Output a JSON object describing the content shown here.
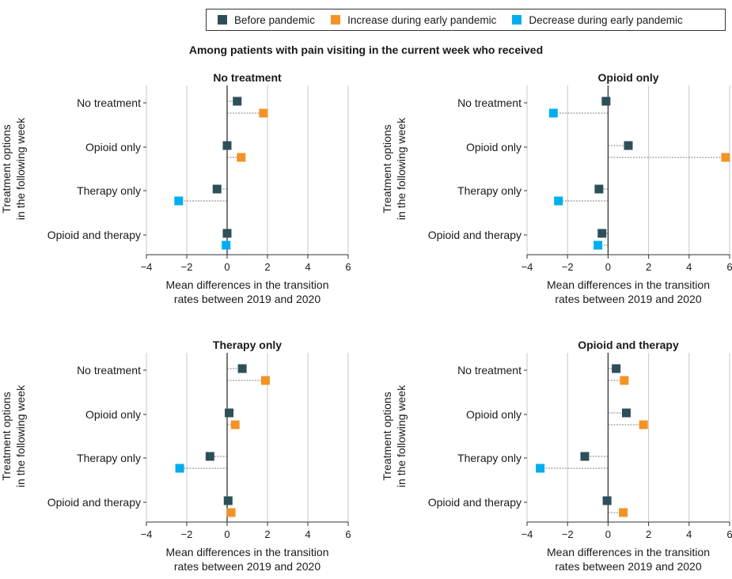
{
  "legend": {
    "items": [
      {
        "label": "Before pandemic",
        "color": "#2d4f5a"
      },
      {
        "label": "Increase during early pandemic",
        "color": "#f39325"
      },
      {
        "label": "Decrease during early pandemic",
        "color": "#00aeef"
      }
    ]
  },
  "main_title": "Among patients with pain visiting in the current week who received",
  "chart_data": [
    {
      "type": "scatter",
      "title": "No treatment",
      "ylabel": "Treatment options in the following week",
      "xlabel": "Mean differences in the transition rates between 2019 and 2020",
      "xlim": [
        -4,
        6
      ],
      "xticks": [
        "−4",
        "−2",
        "0",
        "2",
        "4",
        "6"
      ],
      "categories": [
        "No treatment",
        "Opioid only",
        "Therapy only",
        "Opioid and therapy"
      ],
      "before": [
        0.5,
        0.0,
        -0.5,
        0.0
      ],
      "change": [
        {
          "value": 1.8,
          "direction": "increase"
        },
        {
          "value": 0.7,
          "direction": "increase"
        },
        {
          "value": -2.4,
          "direction": "decrease"
        },
        {
          "value": -0.05,
          "direction": "decrease"
        }
      ]
    },
    {
      "type": "scatter",
      "title": "Opioid only",
      "ylabel": "Treatment options in the following week",
      "xlabel": "Mean differences in the transition rates between 2019 and 2020",
      "xlim": [
        -4,
        6
      ],
      "xticks": [
        "−4",
        "−2",
        "0",
        "2",
        "4",
        "6"
      ],
      "categories": [
        "No treatment",
        "Opioid only",
        "Therapy only",
        "Opioid and therapy"
      ],
      "before": [
        -0.1,
        1.0,
        -0.45,
        -0.3
      ],
      "change": [
        {
          "value": -2.7,
          "direction": "decrease"
        },
        {
          "value": 5.8,
          "direction": "increase"
        },
        {
          "value": -2.45,
          "direction": "decrease"
        },
        {
          "value": -0.5,
          "direction": "decrease"
        }
      ]
    },
    {
      "type": "scatter",
      "title": "Therapy only",
      "ylabel": "Treatment options in the following week",
      "xlabel": "Mean differences in the transition rates between 2019 and 2020",
      "xlim": [
        -4,
        6
      ],
      "xticks": [
        "−4",
        "−2",
        "0",
        "2",
        "4",
        "6"
      ],
      "categories": [
        "No treatment",
        "Opioid only",
        "Therapy only",
        "Opioid and therapy"
      ],
      "before": [
        0.75,
        0.1,
        -0.85,
        0.05
      ],
      "change": [
        {
          "value": 1.9,
          "direction": "increase"
        },
        {
          "value": 0.4,
          "direction": "increase"
        },
        {
          "value": -2.35,
          "direction": "decrease"
        },
        {
          "value": 0.2,
          "direction": "increase"
        }
      ]
    },
    {
      "type": "scatter",
      "title": "Opioid and therapy",
      "ylabel": "Treatment options in the following week",
      "xlabel": "Mean differences in the transition rates between 2019 and 2020",
      "xlim": [
        -4,
        6
      ],
      "xticks": [
        "−4",
        "−2",
        "0",
        "2",
        "4",
        "6"
      ],
      "categories": [
        "No treatment",
        "Opioid only",
        "Therapy only",
        "Opioid and therapy"
      ],
      "before": [
        0.4,
        0.9,
        -1.15,
        -0.05
      ],
      "change": [
        {
          "value": 0.8,
          "direction": "increase"
        },
        {
          "value": 1.75,
          "direction": "increase"
        },
        {
          "value": -3.35,
          "direction": "decrease"
        },
        {
          "value": 0.75,
          "direction": "increase"
        }
      ]
    }
  ]
}
